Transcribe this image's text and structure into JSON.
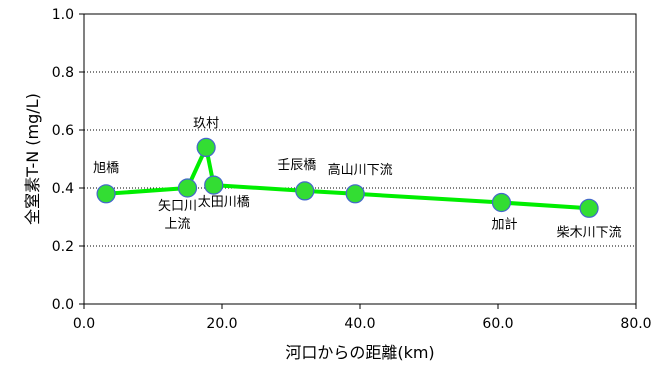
{
  "chart_data": {
    "type": "line",
    "title": "",
    "xlabel": "河口からの距離(km)",
    "ylabel": "全窒素T-N (mg/L)",
    "xlim": [
      0,
      80
    ],
    "ylim": [
      0,
      1.0
    ],
    "x_ticks": [
      0,
      20,
      40,
      60,
      80
    ],
    "x_tick_labels": [
      "0.0",
      "20.0",
      "40.0",
      "60.0",
      "80.0"
    ],
    "y_ticks": [
      0,
      0.2,
      0.4,
      0.6,
      0.8,
      1.0
    ],
    "y_tick_labels": [
      "0.0",
      "0.2",
      "0.4",
      "0.6",
      "0.8",
      "1.0"
    ],
    "grid": "horizontal dotted",
    "legend": "none",
    "series": [
      {
        "color": "#00ee00",
        "marker_color": "#33dd33",
        "marker_edge": "#4466cc",
        "points": [
          {
            "x": 3.2,
            "y": 0.38,
            "label": [
              "旭橋"
            ]
          },
          {
            "x": 15.0,
            "y": 0.4,
            "label": [
              "矢口川",
              "上流"
            ]
          },
          {
            "x": 17.7,
            "y": 0.54,
            "label": [
              "玖村"
            ]
          },
          {
            "x": 18.8,
            "y": 0.41,
            "label": [
              "太田川橋"
            ]
          },
          {
            "x": 32.0,
            "y": 0.39,
            "label": [
              "壬辰橋"
            ]
          },
          {
            "x": 39.3,
            "y": 0.38,
            "label": [
              "高山川下流"
            ]
          },
          {
            "x": 60.5,
            "y": 0.35,
            "label": [
              "加計"
            ]
          },
          {
            "x": 73.2,
            "y": 0.33,
            "label": [
              "柴木川下流"
            ]
          }
        ]
      }
    ]
  }
}
